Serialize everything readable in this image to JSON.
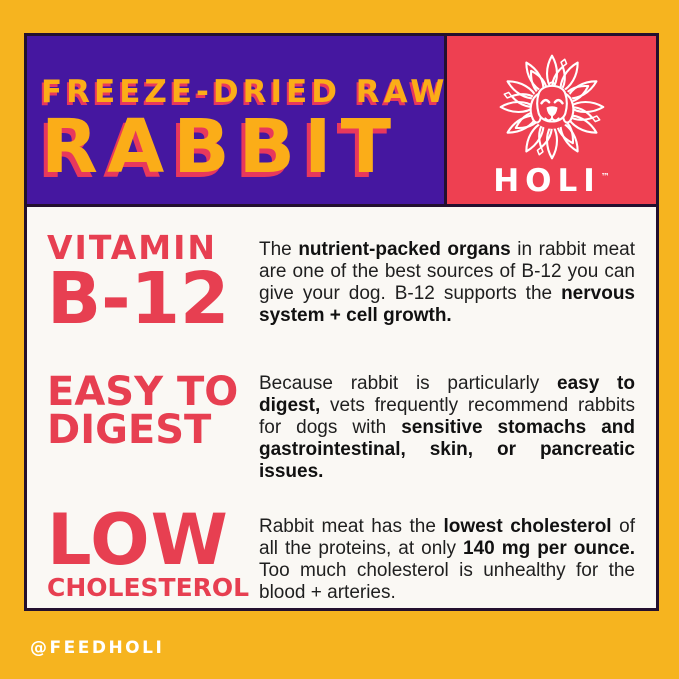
{
  "colors": {
    "frame_yellow": "#F6B41F",
    "header_purple": "#4517A0",
    "brand_red": "#EE4051",
    "heading_red": "#E73F51",
    "headline_yellow": "#FBAD18",
    "headline_shadow_pink": "#E8385C",
    "body_bg": "#FAF8F4",
    "outline_dark": "#23102F",
    "body_ink": "#1F1F1F",
    "footer_text": "#FFFFFF"
  },
  "header": {
    "kicker": "FREEZE-DRIED RAW",
    "title": "RABBIT"
  },
  "brand": {
    "name": "HOLI",
    "trademark": "™",
    "icon": "dog-mandala-icon"
  },
  "sections": [
    {
      "heading": [
        "VITAMIN",
        "B-12"
      ],
      "body": [
        {
          "t": "The ",
          "b": false
        },
        {
          "t": "nutrient-packed organs",
          "b": true
        },
        {
          "t": " in rabbit meat are one of the best sources of B-12 you can give your dog. B-12 supports the ",
          "b": false
        },
        {
          "t": "nervous system + cell growth.",
          "b": true
        }
      ]
    },
    {
      "heading": [
        "EASY TO",
        "DIGEST"
      ],
      "body": [
        {
          "t": "Because rabbit is particularly ",
          "b": false
        },
        {
          "t": "easy to digest,",
          "b": true
        },
        {
          "t": " vets frequently recommend rabbits for dogs with ",
          "b": false
        },
        {
          "t": "sensitive stomachs and gastrointestinal, skin, or pancreatic issues.",
          "b": true
        }
      ]
    },
    {
      "heading": [
        "LOW",
        "CHOLESTEROL"
      ],
      "body": [
        {
          "t": "Rabbit meat has the ",
          "b": false
        },
        {
          "t": "lowest cholesterol",
          "b": true
        },
        {
          "t": " of all the proteins, at only ",
          "b": false
        },
        {
          "t": "140 mg per ounce.",
          "b": true
        },
        {
          "t": " Too much cholesterol is unhealthy for the blood + arteries.",
          "b": false
        }
      ]
    }
  ],
  "footer": {
    "handle": "@FEEDHOLI"
  }
}
